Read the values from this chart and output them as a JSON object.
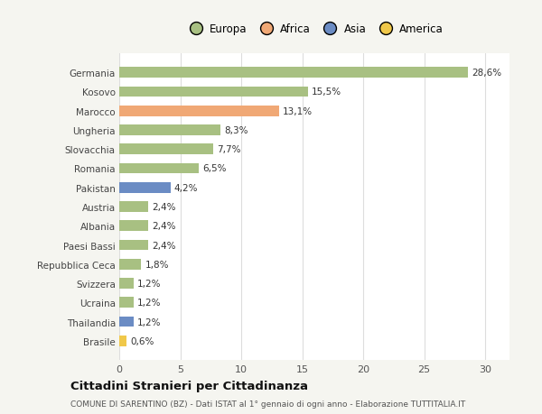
{
  "categories": [
    "Germania",
    "Kosovo",
    "Marocco",
    "Ungheria",
    "Slovacchia",
    "Romania",
    "Pakistan",
    "Austria",
    "Albania",
    "Paesi Bassi",
    "Repubblica Ceca",
    "Svizzera",
    "Ucraina",
    "Thailandia",
    "Brasile"
  ],
  "values": [
    28.6,
    15.5,
    13.1,
    8.3,
    7.7,
    6.5,
    4.2,
    2.4,
    2.4,
    2.4,
    1.8,
    1.2,
    1.2,
    1.2,
    0.6
  ],
  "labels": [
    "28,6%",
    "15,5%",
    "13,1%",
    "8,3%",
    "7,7%",
    "6,5%",
    "4,2%",
    "2,4%",
    "2,4%",
    "2,4%",
    "1,8%",
    "1,2%",
    "1,2%",
    "1,2%",
    "0,6%"
  ],
  "colors": [
    "#a8c082",
    "#a8c082",
    "#f0a875",
    "#a8c082",
    "#a8c082",
    "#a8c082",
    "#6b8cc4",
    "#a8c082",
    "#a8c082",
    "#a8c082",
    "#a8c082",
    "#a8c082",
    "#a8c082",
    "#6b8cc4",
    "#f0c84a"
  ],
  "legend_labels": [
    "Europa",
    "Africa",
    "Asia",
    "America"
  ],
  "legend_colors": [
    "#a8c082",
    "#f0a875",
    "#6b8cc4",
    "#f0c84a"
  ],
  "title": "Cittadini Stranieri per Cittadinanza",
  "subtitle": "COMUNE DI SARENTINO (BZ) - Dati ISTAT al 1° gennaio di ogni anno - Elaborazione TUTTITALIA.IT",
  "xlim": [
    0,
    32
  ],
  "xticks": [
    0,
    5,
    10,
    15,
    20,
    25,
    30
  ],
  "background_color": "#f5f5f0",
  "bar_background": "#ffffff"
}
